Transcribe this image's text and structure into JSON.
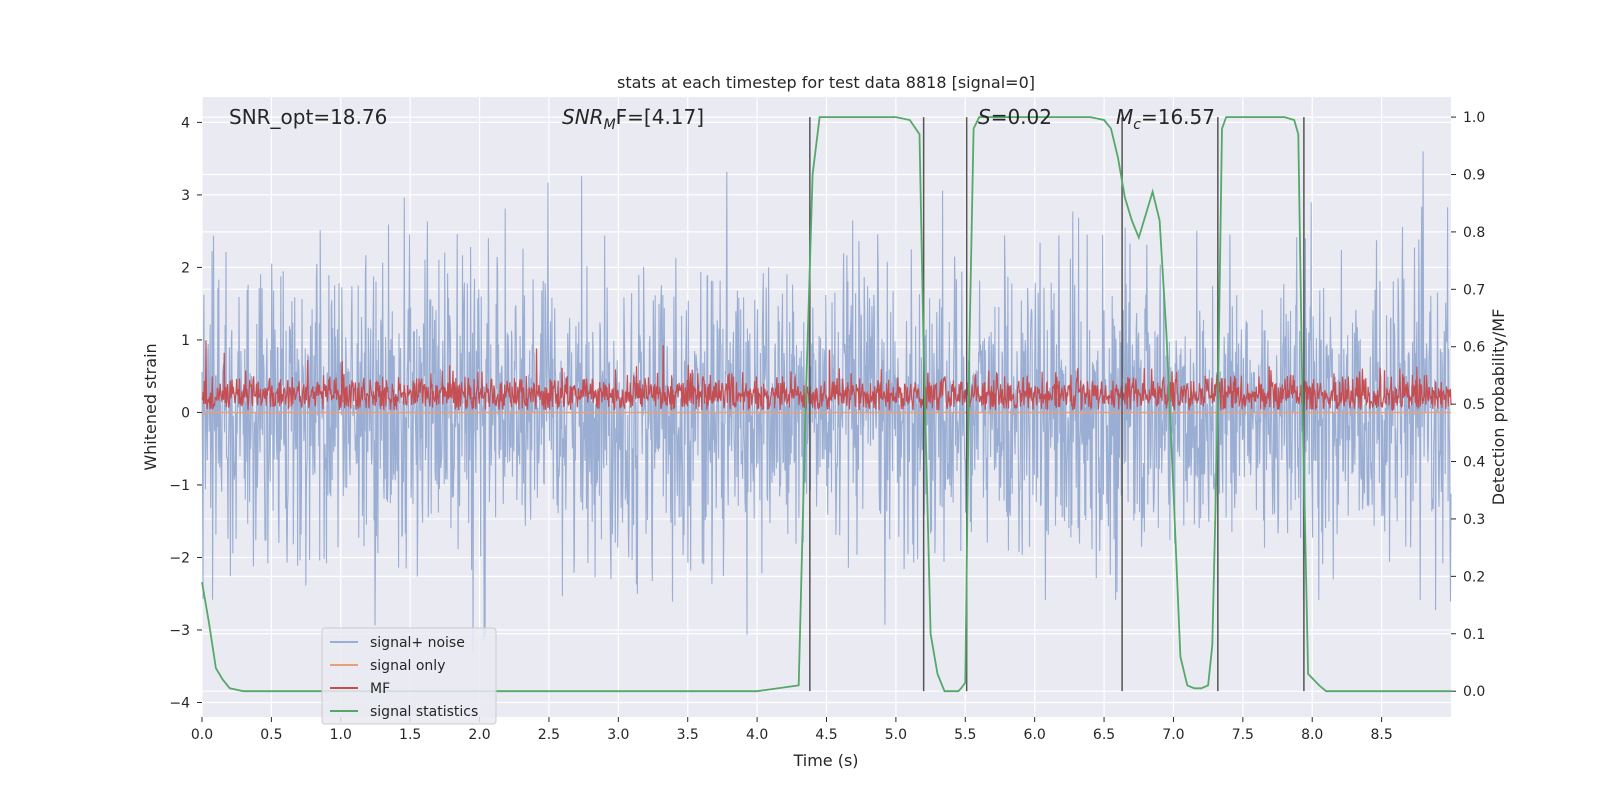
{
  "chart_data": {
    "type": "line",
    "title": "stats at each timestep for test data 8818 [signal=0]",
    "xlabel": "Time (s)",
    "ylabel": "Whitened strain",
    "ylabel_right": "Detection probability/MF",
    "xlim": [
      0.0,
      9.0
    ],
    "ylim": [
      -4.2,
      4.35
    ],
    "ylim_right": [
      -0.045,
      1.035
    ],
    "x_ticks": [
      0.0,
      0.5,
      1.0,
      1.5,
      2.0,
      2.5,
      3.0,
      3.5,
      4.0,
      4.5,
      5.0,
      5.5,
      6.0,
      6.5,
      7.0,
      7.5,
      8.0,
      8.5
    ],
    "x_tick_labels": [
      "0.0",
      "0.5",
      "1.0",
      "1.5",
      "2.0",
      "2.5",
      "3.0",
      "3.5",
      "4.0",
      "4.5",
      "5.0",
      "5.5",
      "6.0",
      "6.5",
      "7.0",
      "7.5",
      "8.0",
      "8.5"
    ],
    "y_ticks": [
      4,
      3,
      2,
      1,
      0,
      -1,
      -2,
      -3,
      -4
    ],
    "y_tick_labels": [
      "4",
      "3",
      "2",
      "1",
      "0",
      "−1",
      "−2",
      "−3",
      "−4"
    ],
    "y_right_ticks": [
      1.0,
      0.9,
      0.8,
      0.7,
      0.6,
      0.5,
      0.4,
      0.3,
      0.2,
      0.1,
      0.0
    ],
    "y_right_tick_labels": [
      "1.0",
      "0.9",
      "0.8",
      "0.7",
      "0.6",
      "0.5",
      "0.4",
      "0.3",
      "0.2",
      "0.1",
      "0.0"
    ],
    "annotations": {
      "snr_opt": "SNR_opt=18.76",
      "snr_mf_main": "SNR",
      "snr_mf_sub": "M",
      "snr_mf_rest": "F=[4.17]",
      "s_main": "S",
      "s_rest": "=0.02",
      "mc_main": "M",
      "mc_sub": "c",
      "mc_rest": "=16.57"
    },
    "series": [
      {
        "name": "signal+ noise",
        "color": "#9aaed3",
        "envelope_typical": 1.3,
        "envelope_peak": 3.6,
        "center": 0.0
      },
      {
        "name": "signal only",
        "color": "#e8a07a",
        "values_constant": 0.0
      },
      {
        "name": "MF",
        "color": "#c44e52",
        "base": 0.18,
        "typical_peak": 0.5,
        "max_peak": 1.0
      },
      {
        "name": "signal statistics",
        "color": "#55a868",
        "axis": "right",
        "x": [
          0.0,
          0.05,
          0.1,
          0.15,
          0.2,
          0.3,
          1.0,
          2.0,
          3.0,
          4.0,
          4.3,
          4.35,
          4.4,
          4.45,
          4.5,
          5.0,
          5.1,
          5.17,
          5.2,
          5.25,
          5.3,
          5.35,
          5.4,
          5.45,
          5.47,
          5.5,
          5.53,
          5.56,
          5.6,
          6.0,
          6.4,
          6.5,
          6.55,
          6.6,
          6.65,
          6.7,
          6.75,
          6.8,
          6.85,
          6.9,
          6.95,
          7.0,
          7.05,
          7.1,
          7.15,
          7.2,
          7.25,
          7.28,
          7.32,
          7.35,
          7.38,
          7.42,
          7.5,
          7.8,
          7.87,
          7.9,
          7.93,
          7.97,
          8.05,
          8.1,
          8.2,
          8.5,
          9.0
        ],
        "y": [
          0.19,
          0.12,
          0.04,
          0.02,
          0.005,
          0.0,
          0.0,
          0.0,
          0.0,
          0.0,
          0.01,
          0.5,
          0.9,
          1.0,
          1.0,
          1.0,
          0.995,
          0.97,
          0.6,
          0.1,
          0.03,
          0.0,
          0.0,
          0.0,
          0.005,
          0.015,
          0.6,
          0.98,
          1.0,
          1.0,
          1.0,
          0.995,
          0.98,
          0.93,
          0.86,
          0.82,
          0.79,
          0.83,
          0.87,
          0.82,
          0.62,
          0.35,
          0.06,
          0.01,
          0.005,
          0.005,
          0.01,
          0.08,
          0.5,
          0.98,
          1.0,
          1.0,
          1.0,
          1.0,
          0.995,
          0.97,
          0.5,
          0.03,
          0.01,
          0.0,
          0.0,
          0.0,
          0.0
        ]
      }
    ],
    "vlines": [
      4.38,
      5.2,
      5.51,
      6.63,
      7.32,
      7.94
    ],
    "legend_position": "lower-left",
    "legend_entries": [
      {
        "label": "signal+ noise",
        "color": "#9aaed3"
      },
      {
        "label": "signal only",
        "color": "#e8a07a"
      },
      {
        "label": "MF",
        "color": "#c44e52"
      },
      {
        "label": "signal statistics",
        "color": "#55a868"
      }
    ]
  },
  "colors": {
    "plot_background": "#eaeaf2",
    "grid": "#ffffff",
    "vline": "#555555"
  }
}
